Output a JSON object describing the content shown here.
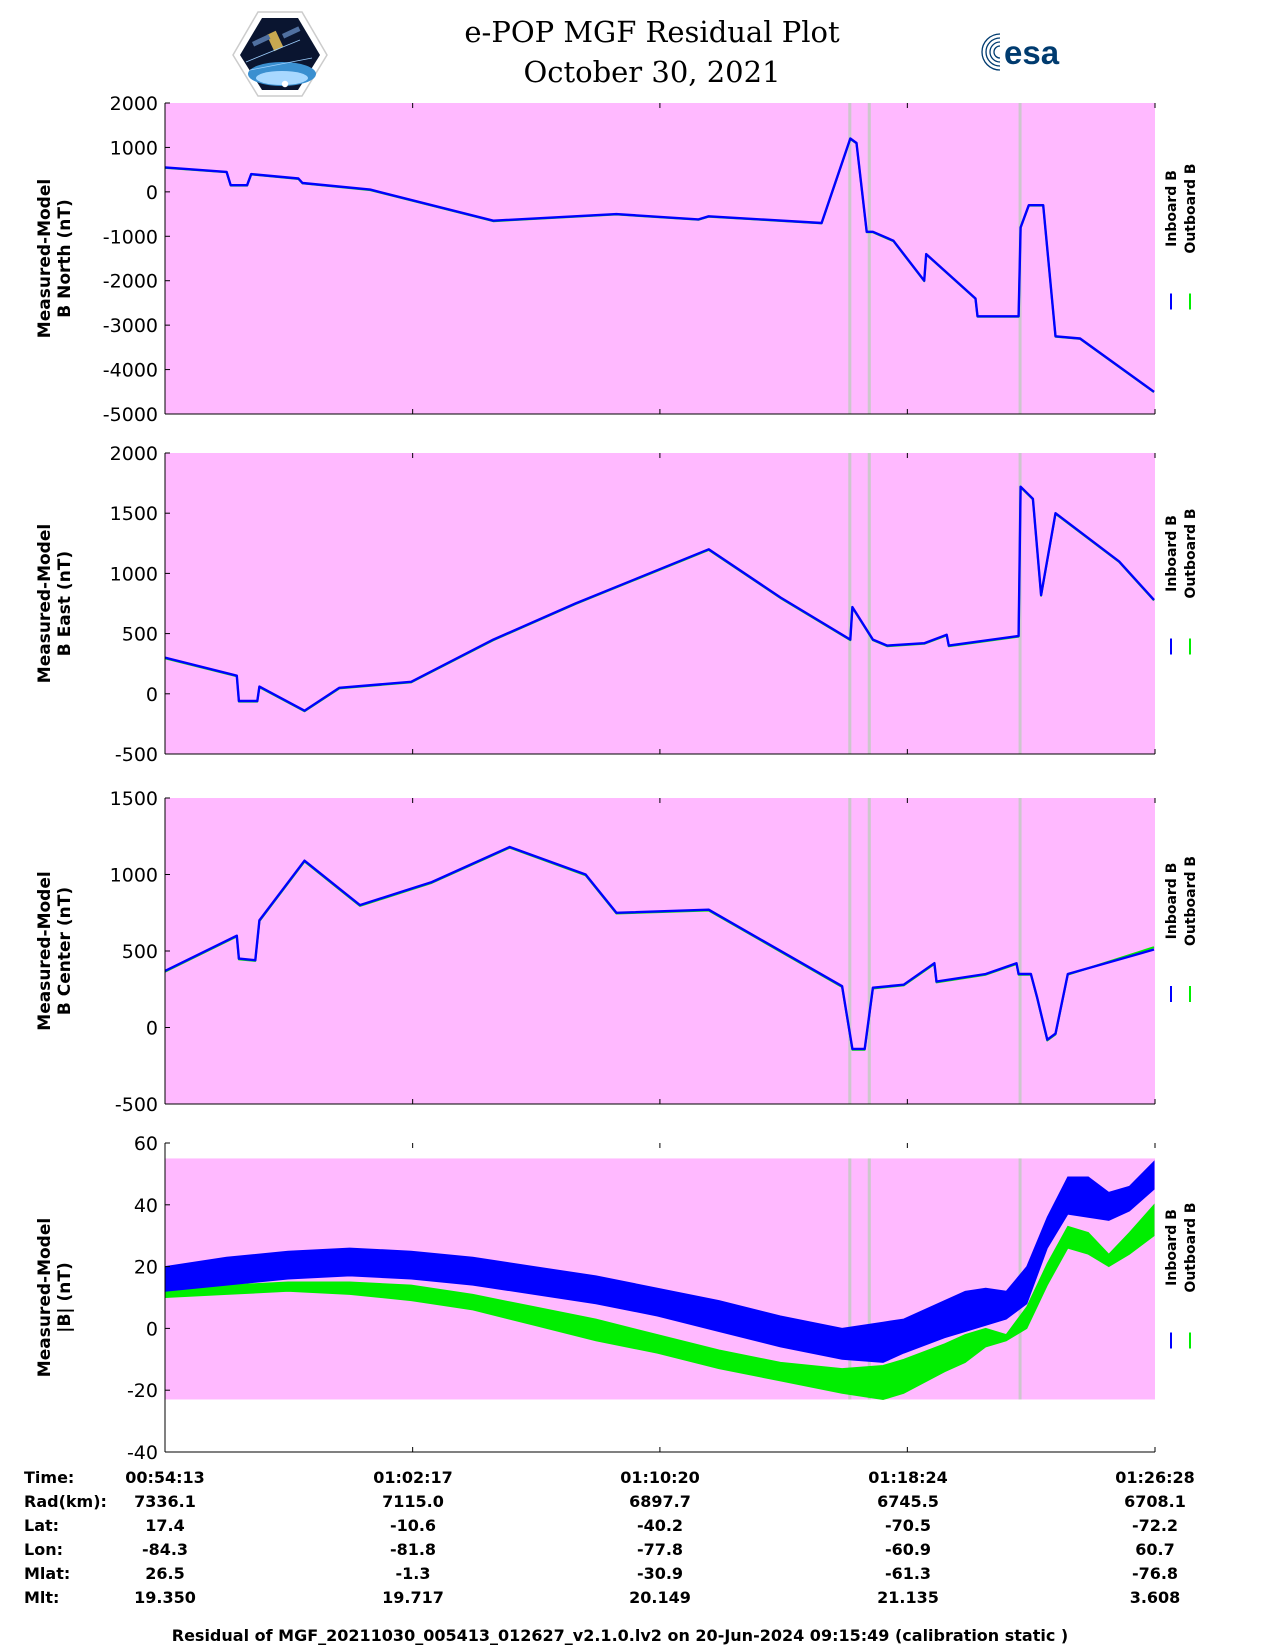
{
  "colors": {
    "background_panel": "#ffb9ff",
    "inboard": "#0000ff",
    "outboard": "#00ee00",
    "gap_band": "#c8c8c8",
    "esa_blue": "#003b6f"
  },
  "header": {
    "title_line1": "e-POP MGF Residual Plot",
    "title_line2": "October 30, 2021",
    "left_logo": "epop-cassiope-mission-badge",
    "right_logo": "esa-logo",
    "esa_text": "esa"
  },
  "chart_data": [
    {
      "type": "line",
      "ylabel": [
        "Measured-Model",
        "B North (nT)"
      ],
      "ylim": [
        -5000,
        2000
      ],
      "yticks": [
        2000,
        1000,
        0,
        -1000,
        -2000,
        -3000,
        -4000,
        -5000
      ],
      "shade_range": [
        -5000,
        2000
      ],
      "x_unit": "minutes after 00:54:13",
      "series": [
        {
          "name": "Inboard B",
          "color": "#0000ff",
          "x": [
            0,
            3,
            3.2,
            4,
            4.2,
            6.5,
            6.7,
            10,
            16,
            22,
            26,
            26.5,
            32,
            33.4,
            33.7,
            34.2,
            34.5,
            35.5,
            37,
            37.1,
            39.5,
            39.6,
            41.6,
            41.7,
            42.1,
            42.8,
            43.4,
            44.6,
            48.2
          ],
          "values": [
            550,
            450,
            150,
            150,
            400,
            300,
            200,
            50,
            -650,
            -500,
            -620,
            -550,
            -700,
            1200,
            1100,
            -900,
            -900,
            -1100,
            -2000,
            -1400,
            -2400,
            -2800,
            -2800,
            -800,
            -300,
            -300,
            -3250,
            -3300,
            -4500
          ]
        },
        {
          "name": "Outboard B",
          "color": "#00ee00",
          "x": [
            0,
            3,
            3.2,
            4,
            4.2,
            6.5,
            6.7,
            10,
            16,
            22,
            26,
            26.5,
            32,
            33.4,
            33.7,
            34.2,
            34.5,
            35.5,
            37,
            37.1,
            39.5,
            39.6,
            41.6,
            41.7,
            42.1,
            42.8,
            43.4,
            44.6,
            48.2
          ],
          "values": [
            540,
            440,
            140,
            140,
            390,
            290,
            190,
            40,
            -660,
            -510,
            -630,
            -560,
            -710,
            1190,
            1090,
            -910,
            -910,
            -1110,
            -2010,
            -1410,
            -2410,
            -2810,
            -2810,
            -810,
            -310,
            -310,
            -3260,
            -3310,
            -4510
          ]
        }
      ]
    },
    {
      "type": "line",
      "ylabel": [
        "Measured-Model",
        "B East (nT)"
      ],
      "ylim": [
        -500,
        2000
      ],
      "yticks": [
        2000,
        1500,
        1000,
        500,
        0,
        -500
      ],
      "shade_range": [
        -500,
        2000
      ],
      "x_unit": "minutes after 00:54:13",
      "series": [
        {
          "name": "Inboard B",
          "color": "#0000ff",
          "x": [
            0,
            3.5,
            3.6,
            4.5,
            4.6,
            6.8,
            8.5,
            12,
            16,
            20,
            26.5,
            30,
            33.4,
            33.5,
            34.5,
            35.2,
            37,
            38.1,
            38.2,
            41.6,
            41.7,
            42.3,
            42.7,
            43.4,
            46.5,
            48.2
          ],
          "values": [
            300,
            150,
            -60,
            -60,
            60,
            -140,
            50,
            100,
            450,
            750,
            1200,
            800,
            450,
            720,
            450,
            400,
            420,
            490,
            400,
            480,
            1720,
            1620,
            820,
            1500,
            1100,
            780
          ]
        },
        {
          "name": "Outboard B",
          "color": "#00ee00",
          "x": [
            0,
            3.5,
            3.6,
            4.5,
            4.6,
            6.8,
            8.5,
            12,
            16,
            20,
            26.5,
            30,
            33.4,
            33.5,
            34.5,
            35.2,
            37,
            38.1,
            38.2,
            41.6,
            41.7,
            42.3,
            42.7,
            43.4,
            46.5,
            48.2
          ],
          "values": [
            295,
            145,
            -65,
            -65,
            55,
            -145,
            45,
            95,
            445,
            745,
            1195,
            795,
            445,
            715,
            445,
            395,
            415,
            485,
            395,
            475,
            1715,
            1615,
            815,
            1495,
            1095,
            775
          ]
        }
      ]
    },
    {
      "type": "line",
      "ylabel": [
        "Measured-Model",
        "B Center (nT)"
      ],
      "ylim": [
        -500,
        1500
      ],
      "yticks": [
        1500,
        1000,
        500,
        0,
        -500
      ],
      "shade_range": [
        -500,
        1500
      ],
      "x_unit": "minutes after 00:54:13",
      "series": [
        {
          "name": "Inboard B",
          "color": "#0000ff",
          "x": [
            0,
            3.5,
            3.6,
            4.4,
            4.6,
            6.8,
            9.5,
            13,
            16.8,
            20.5,
            22,
            26.5,
            33,
            33.5,
            34.1,
            34.5,
            36,
            37.5,
            37.6,
            40,
            41.5,
            41.6,
            42.2,
            42.5,
            43,
            43.4,
            44,
            48.2
          ],
          "values": [
            370,
            600,
            450,
            440,
            700,
            1090,
            800,
            950,
            1180,
            1000,
            750,
            770,
            270,
            -140,
            -140,
            260,
            280,
            420,
            300,
            350,
            420,
            350,
            350,
            200,
            -80,
            -40,
            350,
            510
          ]
        },
        {
          "name": "Outboard B",
          "color": "#00ee00",
          "x": [
            0,
            3.5,
            3.6,
            4.4,
            4.6,
            6.8,
            9.5,
            13,
            16.8,
            20.5,
            22,
            26.5,
            33,
            33.5,
            34.1,
            34.5,
            36,
            37.5,
            37.6,
            40,
            41.5,
            41.6,
            42.2,
            42.5,
            43,
            43.4,
            44,
            48.2
          ],
          "values": [
            365,
            595,
            445,
            435,
            695,
            1085,
            795,
            945,
            1175,
            995,
            745,
            765,
            265,
            -145,
            -145,
            255,
            275,
            415,
            295,
            345,
            415,
            345,
            345,
            195,
            -85,
            -45,
            345,
            525
          ]
        }
      ]
    },
    {
      "type": "area",
      "ylabel": [
        "Measured-Model",
        "|B| (nT)"
      ],
      "ylim": [
        -40,
        60
      ],
      "yticks": [
        60,
        40,
        20,
        0,
        -20,
        -40
      ],
      "shade_range": [
        -23,
        55
      ],
      "x_unit": "minutes after 00:54:13",
      "series": [
        {
          "name": "Inboard B",
          "color": "#0000ff",
          "x": [
            0,
            3,
            6,
            9,
            12,
            15,
            18,
            21,
            24,
            27,
            30,
            33,
            35,
            36,
            38,
            39,
            40,
            41,
            42,
            43,
            44,
            45,
            46,
            47,
            48.2
          ],
          "upper": [
            20,
            23,
            25,
            26,
            25,
            23,
            20,
            17,
            13,
            9,
            4,
            0,
            2,
            3,
            9,
            12,
            13,
            12,
            20,
            36,
            49,
            49,
            44,
            46,
            54
          ],
          "lower": [
            12,
            14,
            16,
            17,
            16,
            14,
            11,
            8,
            4,
            -1,
            -6,
            -10,
            -11,
            -8,
            -3,
            -1,
            1,
            3,
            8,
            26,
            37,
            36,
            35,
            38,
            45
          ]
        },
        {
          "name": "Outboard B",
          "color": "#00ee00",
          "x": [
            0,
            3,
            6,
            9,
            12,
            15,
            18,
            21,
            24,
            27,
            30,
            33,
            35,
            36,
            38,
            39,
            40,
            41,
            42,
            43,
            44,
            45,
            46,
            47,
            48.2
          ],
          "upper": [
            12,
            14,
            15,
            15,
            14,
            11,
            7,
            3,
            -2,
            -7,
            -11,
            -13,
            -12,
            -10,
            -5,
            -2,
            0,
            -2,
            7,
            21,
            33,
            31,
            24,
            31,
            40
          ],
          "lower": [
            10,
            11,
            12,
            11,
            9,
            6,
            1,
            -4,
            -8,
            -13,
            -17,
            -21,
            -23,
            -21,
            -14,
            -11,
            -6,
            -4,
            0,
            14,
            26,
            24,
            20,
            24,
            30
          ]
        }
      ]
    }
  ],
  "x_axis": {
    "xlim": [
      0,
      48.25
    ],
    "tick_positions": [
      0,
      12.07,
      24.12,
      36.18,
      48.25
    ],
    "gap_bands": [
      [
        33.3,
        33.45
      ],
      [
        34.25,
        34.4
      ],
      [
        41.6,
        41.7
      ]
    ]
  },
  "legend": {
    "inboard_label": "Inboard B",
    "outboard_label": "Outboard B"
  },
  "info_table": {
    "row_labels": [
      "Time:",
      "Rad(km):",
      "Lat:",
      "Lon:",
      "Mlat:",
      "Mlt:"
    ],
    "columns": [
      [
        "00:54:13",
        "7336.1",
        "17.4",
        "-84.3",
        "26.5",
        "19.350"
      ],
      [
        "01:02:17",
        "7115.0",
        "-10.6",
        "-81.8",
        "-1.3",
        "19.717"
      ],
      [
        "01:10:20",
        "6897.7",
        "-40.2",
        "-77.8",
        "-30.9",
        "20.149"
      ],
      [
        "01:18:24",
        "6745.5",
        "-70.5",
        "-60.9",
        "-61.3",
        "21.135"
      ],
      [
        "01:26:28",
        "6708.1",
        "-72.2",
        "60.7",
        "-76.8",
        "3.608"
      ]
    ]
  },
  "footer": "Residual of MGF_20211030_005413_012627_v2.1.0.lv2 on 20-Jun-2024 09:15:49 (calibration static )"
}
